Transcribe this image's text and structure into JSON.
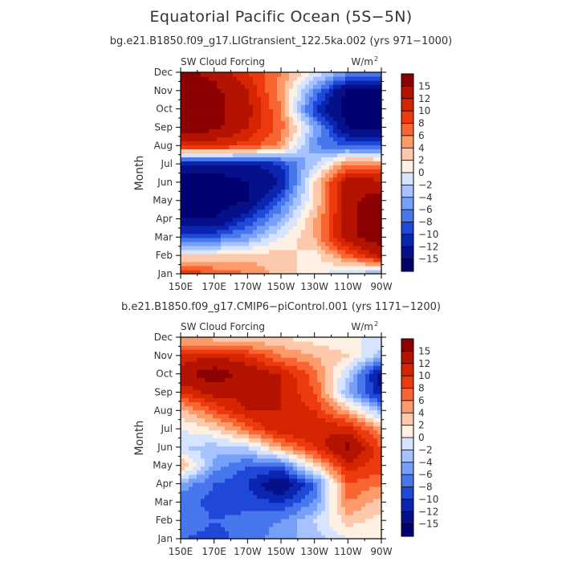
{
  "title": "Equatorial Pacific Ocean (5S−5N)",
  "panels": [
    {
      "run_title": "bg.e21.B1850.f09_g17.LIGtransient_122.5ka.002 (yrs 971−1000)",
      "left_label": "SW Cloud Forcing",
      "unit_label": "W/m",
      "unit_sup": "2"
    },
    {
      "run_title": "b.e21.B1850.f09_g17.CMIP6−piControl.001 (yrs 1171−1200)",
      "left_label": "SW Cloud Forcing",
      "unit_label": "W/m",
      "unit_sup": "2"
    }
  ],
  "chart_data": {
    "type": "heatmap",
    "ylabel": "Month",
    "x_ticks": [
      "150E",
      "170E",
      "170W",
      "150W",
      "130W",
      "110W",
      "90W"
    ],
    "x_values": [
      150,
      170,
      190,
      210,
      230,
      250,
      270
    ],
    "xlim": [
      150,
      270
    ],
    "y_ticks": [
      "Jan",
      "Feb",
      "Mar",
      "Apr",
      "May",
      "Jun",
      "Jul",
      "Aug",
      "Sep",
      "Oct",
      "Nov",
      "Dec"
    ],
    "colorbar": {
      "levels": [
        "15",
        "12",
        "10",
        "8",
        "6",
        "4",
        "2",
        "0",
        "−2",
        "−4",
        "−6",
        "−8",
        "−10",
        "−12",
        "−15"
      ],
      "colors": [
        "#8b0000",
        "#b31300",
        "#d42400",
        "#ec3a0e",
        "#f96532",
        "#fc9a6a",
        "#fdc9ac",
        "#fef0e3",
        "#d6e4ff",
        "#a6c2ff",
        "#769ff8",
        "#4876ec",
        "#1f48d8",
        "#0a25b0",
        "#06108a",
        "#000070"
      ]
    },
    "panels": [
      {
        "grid_x": [
          150,
          170,
          190,
          210,
          230,
          250,
          270
        ],
        "grid_y": [
          "Jan",
          "Feb",
          "Mar",
          "Apr",
          "May",
          "Jun",
          "Jul",
          "Aug",
          "Sep",
          "Oct",
          "Nov",
          "Dec"
        ],
        "values": [
          [
            10,
            8,
            6,
            3,
            1,
            -2,
            -5
          ],
          [
            2,
            2,
            3,
            3,
            1,
            7,
            13
          ],
          [
            -8,
            -8,
            -5,
            0,
            4,
            14,
            17
          ],
          [
            -15,
            -15,
            -10,
            -4,
            4,
            14,
            17
          ],
          [
            -17,
            -17,
            -15,
            -8,
            2,
            14,
            17
          ],
          [
            -17,
            -17,
            -15,
            -12,
            2,
            14,
            13
          ],
          [
            -13,
            -13,
            -13,
            -10,
            -2,
            6,
            6
          ],
          [
            10,
            10,
            9,
            5,
            -6,
            -8,
            -9
          ],
          [
            17,
            16,
            12,
            7,
            -4,
            -15,
            -16
          ],
          [
            17,
            16,
            13,
            6,
            -10,
            -17,
            -17
          ],
          [
            17,
            16,
            12,
            5,
            -6,
            -16,
            -16
          ],
          [
            16,
            14,
            10,
            6,
            0,
            -5,
            -5
          ]
        ]
      },
      {
        "grid_x": [
          150,
          170,
          190,
          210,
          230,
          250,
          270
        ],
        "grid_y": [
          "Jan",
          "Feb",
          "Mar",
          "Apr",
          "May",
          "Jun",
          "Jul",
          "Aug",
          "Sep",
          "Oct",
          "Nov",
          "Dec"
        ],
        "values": [
          [
            -8,
            -9,
            -7,
            -5,
            -3,
            0,
            0
          ],
          [
            -6,
            -8,
            -7,
            -6,
            -2,
            3,
            1
          ],
          [
            -7,
            -9,
            -9,
            -10,
            -6,
            6,
            3
          ],
          [
            -5,
            -8,
            -10,
            -15,
            -8,
            8,
            6
          ],
          [
            5,
            -5,
            -8,
            -8,
            2,
            11,
            9
          ],
          [
            -2,
            -3,
            -2,
            5,
            10,
            16,
            8
          ],
          [
            0,
            2,
            7,
            12,
            12,
            11,
            5
          ],
          [
            3,
            8,
            12,
            12,
            10,
            4,
            -4
          ],
          [
            10,
            13,
            13,
            12,
            8,
            -4,
            -12
          ],
          [
            14,
            17,
            14,
            12,
            7,
            -2,
            -14
          ],
          [
            10,
            12,
            10,
            6,
            4,
            2,
            -3
          ],
          [
            4,
            3,
            2,
            2,
            1,
            0,
            0
          ]
        ]
      }
    ]
  }
}
